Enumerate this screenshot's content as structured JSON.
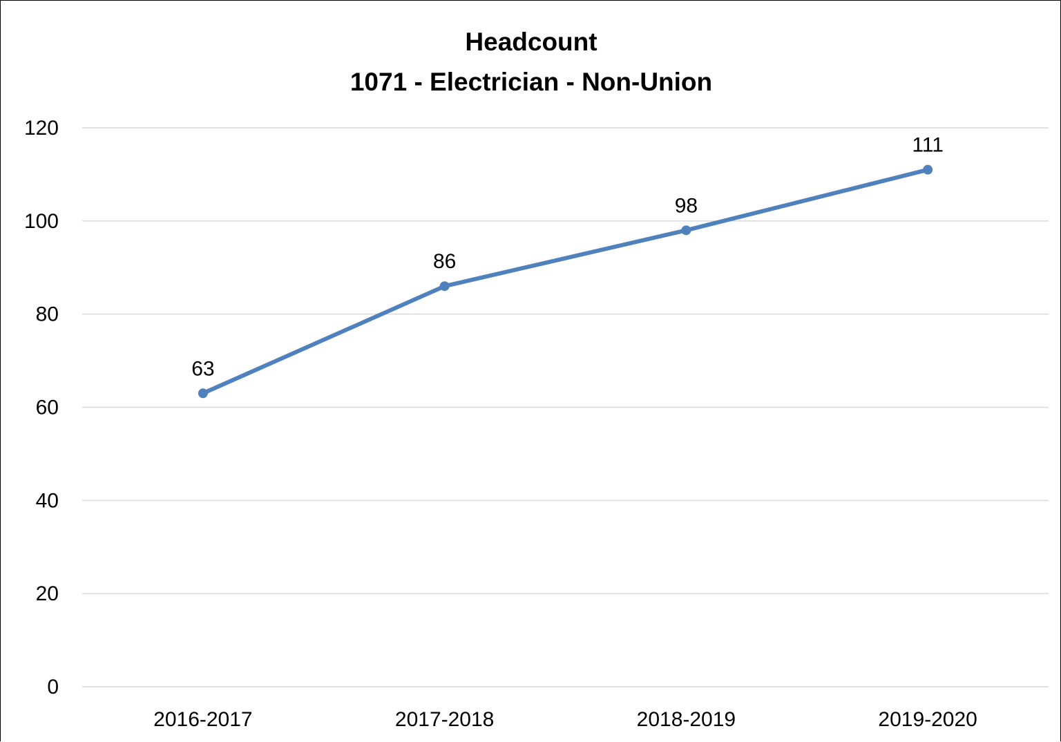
{
  "chart_data": {
    "type": "line",
    "title_lines": [
      "Headcount",
      "1071 - Electrician - Non-Union"
    ],
    "xlabel": "",
    "ylabel": "",
    "categories": [
      "2016-2017",
      "2017-2018",
      "2018-2019",
      "2019-2020"
    ],
    "series": [
      {
        "values": [
          63,
          86,
          98,
          111
        ],
        "color": "#4F81BD",
        "markers": true,
        "data_labels": [
          "63",
          "86",
          "98",
          "111"
        ]
      }
    ],
    "ylim": [
      0,
      120
    ],
    "yticks": [
      0,
      20,
      40,
      60,
      80,
      100,
      120
    ],
    "ytick_labels": [
      "0",
      "20",
      "40",
      "60",
      "80",
      "100",
      "120"
    ],
    "grid": true,
    "gridline_color": "#D9D9D9",
    "legend": "none"
  }
}
